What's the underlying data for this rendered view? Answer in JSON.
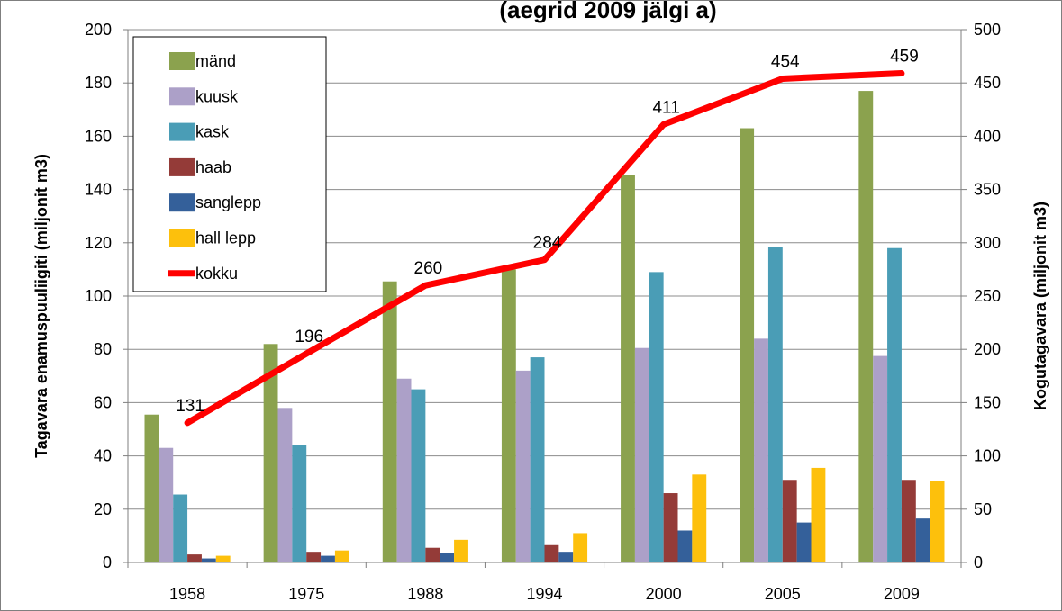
{
  "chart_data": {
    "type": "bar",
    "title": "(aegrid 2009 jälgi a)",
    "ylabel": "Tagavara enamuspuuliigiti (miljonit  m3)",
    "y2label": "Kogutagavara (miljonit m3)",
    "categories": [
      "1958",
      "1975",
      "1988",
      "1994",
      "2000",
      "2005",
      "2009"
    ],
    "ylim": [
      0,
      200
    ],
    "y2lim": [
      0,
      500
    ],
    "yticks": [
      "0",
      "20",
      "40",
      "60",
      "80",
      "100",
      "120",
      "140",
      "160",
      "180",
      "200"
    ],
    "y2ticks": [
      "0",
      "50",
      "100",
      "150",
      "200",
      "250",
      "300",
      "350",
      "400",
      "450",
      "500"
    ],
    "grid": true,
    "legend_position": "top-left",
    "series": [
      {
        "name": "mänd",
        "color": "#8BA24E",
        "values": [
          55.5,
          82,
          105.5,
          110,
          145.5,
          163,
          177
        ]
      },
      {
        "name": "kuusk",
        "color": "#ACA0C8",
        "values": [
          43,
          58,
          69,
          72,
          80.5,
          84,
          77.5
        ]
      },
      {
        "name": "kask",
        "color": "#4A9DB6",
        "values": [
          25.5,
          44,
          65,
          77,
          109,
          118.5,
          118
        ]
      },
      {
        "name": "haab",
        "color": "#943B38",
        "values": [
          3,
          4,
          5.5,
          6.5,
          26,
          31,
          31
        ]
      },
      {
        "name": "sanglepp",
        "color": "#34609A",
        "values": [
          1.5,
          2.5,
          3.5,
          4,
          12,
          15,
          16.5
        ]
      },
      {
        "name": "hall lepp",
        "color": "#FDC00C",
        "values": [
          2.5,
          4.5,
          8.5,
          11,
          33,
          35.5,
          30.5
        ]
      }
    ],
    "line_series": {
      "name": "kokku",
      "color": "#FF0000",
      "axis": "right",
      "values": [
        131,
        196,
        260,
        284,
        411,
        454,
        459
      ],
      "labels": [
        "131",
        "196",
        "260",
        "284",
        "411",
        "454",
        "459"
      ]
    }
  }
}
